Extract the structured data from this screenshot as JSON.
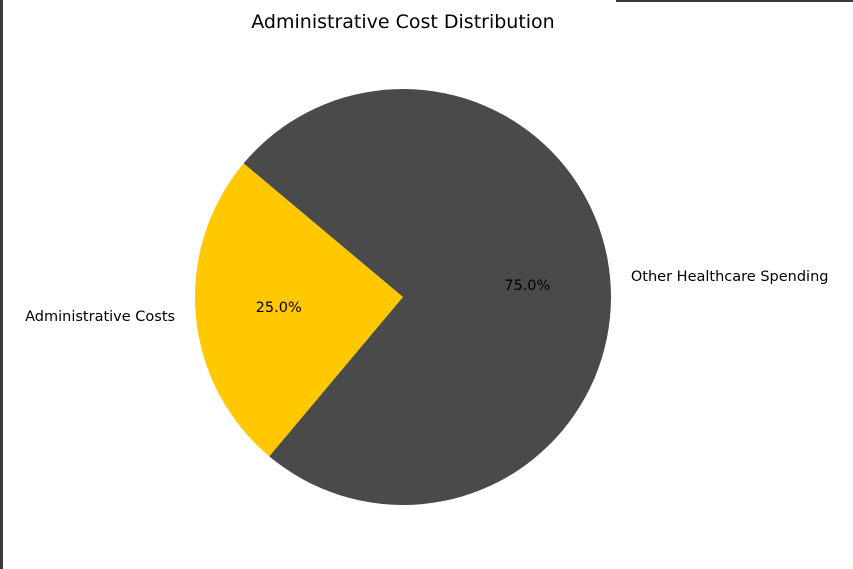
{
  "chart_data": {
    "type": "pie",
    "title": "Administrative Cost Distribution",
    "slices": [
      {
        "label": "Administrative Costs",
        "value": 25.0,
        "pct_label": "25.0%",
        "color": "#ffc800"
      },
      {
        "label": "Other Healthcare Spending",
        "value": 75.0,
        "pct_label": "75.0%",
        "color": "#4a4a4a"
      }
    ],
    "start_angle_deg": 140,
    "legend": "none"
  }
}
